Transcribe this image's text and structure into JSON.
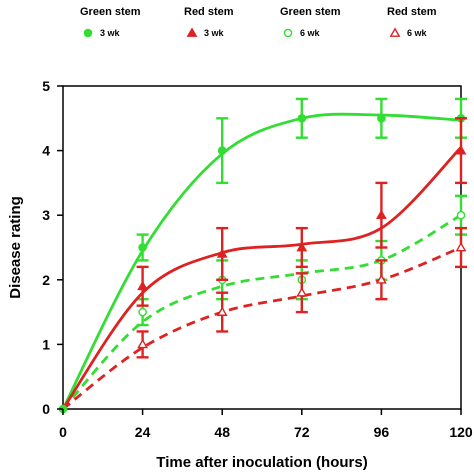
{
  "chart_data": {
    "type": "line",
    "title": "",
    "xlabel": "Time after inoculation (hours)",
    "ylabel": "Disease rating",
    "xlim": [
      0,
      120
    ],
    "ylim": [
      0,
      5
    ],
    "xticks": [
      0,
      24,
      48,
      72,
      96,
      120
    ],
    "yticks": [
      0,
      1,
      2,
      3,
      4,
      5
    ],
    "grid": false,
    "legend": "top",
    "x": [
      0,
      24,
      48,
      72,
      96,
      120
    ],
    "series": [
      {
        "name": "Green stem",
        "sublabel": "3 wk",
        "color": "#33dd33",
        "dashed": false,
        "marker": "circle-filled",
        "values": [
          0,
          2.5,
          4.0,
          4.5,
          4.5,
          4.5
        ],
        "errors": [
          0,
          0.2,
          0.5,
          0.3,
          0.3,
          0.3
        ],
        "curve": [
          0,
          2.45,
          3.95,
          4.5,
          4.55,
          4.47
        ]
      },
      {
        "name": "Red stem",
        "sublabel": "3 wk",
        "color": "#dd2222",
        "dashed": false,
        "marker": "triangle-filled",
        "values": [
          0,
          1.9,
          2.4,
          2.5,
          3.0,
          4.0
        ],
        "errors": [
          0,
          0.3,
          0.4,
          0.3,
          0.5,
          0.5
        ],
        "curve": [
          0,
          1.8,
          2.42,
          2.55,
          2.8,
          4.05
        ]
      },
      {
        "name": "Green stem",
        "sublabel": "6 wk",
        "color": "#33dd33",
        "dashed": true,
        "marker": "circle-open",
        "values": [
          0,
          1.5,
          2.0,
          2.0,
          2.3,
          3.0
        ],
        "errors": [
          0,
          0.2,
          0.3,
          0.3,
          0.3,
          0.3
        ],
        "curve": [
          0,
          1.35,
          1.9,
          2.1,
          2.3,
          3.0
        ]
      },
      {
        "name": "Red stem",
        "sublabel": "6 wk",
        "color": "#dd2222",
        "dashed": true,
        "marker": "triangle-open",
        "values": [
          0,
          1.0,
          1.5,
          1.8,
          2.0,
          2.5
        ],
        "errors": [
          0,
          0.2,
          0.3,
          0.3,
          0.3,
          0.3
        ],
        "curve": [
          0,
          0.95,
          1.5,
          1.75,
          2.0,
          2.5
        ]
      }
    ]
  }
}
